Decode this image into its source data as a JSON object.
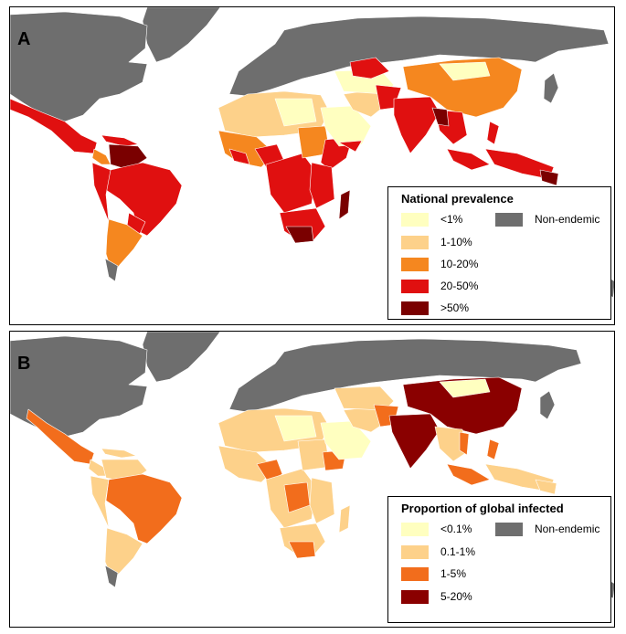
{
  "panel_a": {
    "letter": "A",
    "legend": {
      "title": "National prevalence",
      "classes": [
        {
          "label": "<1%",
          "color": "#ffffc0"
        },
        {
          "label": "1-10%",
          "color": "#fdd18a"
        },
        {
          "label": "10-20%",
          "color": "#f5871f"
        },
        {
          "label": "20-50%",
          "color": "#e01010"
        },
        {
          "label": ">50%",
          "color": "#7a0000"
        }
      ],
      "non_endemic": {
        "label": "Non-endemic",
        "color": "#6e6e6e"
      }
    }
  },
  "panel_b": {
    "letter": "B",
    "legend": {
      "title": "Proportion of global infected",
      "classes": [
        {
          "label": "<0.1%",
          "color": "#ffffc0"
        },
        {
          "label": "0.1-1%",
          "color": "#fdd18a"
        },
        {
          "label": "1-5%",
          "color": "#f26d1c"
        },
        {
          "label": "5-20%",
          "color": "#8a0000"
        }
      ],
      "non_endemic": {
        "label": "Non-endemic",
        "color": "#6e6e6e"
      }
    }
  },
  "colors": {
    "border": "#ffffff",
    "frame": "#000000"
  }
}
